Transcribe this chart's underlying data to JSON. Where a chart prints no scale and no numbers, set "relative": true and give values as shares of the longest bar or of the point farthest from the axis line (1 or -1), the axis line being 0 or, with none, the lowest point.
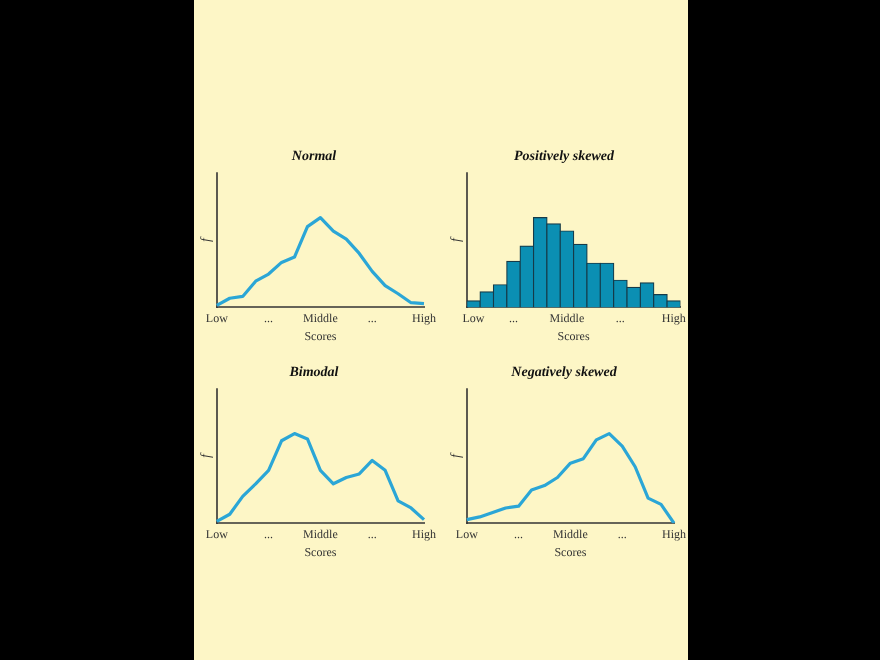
{
  "chart_data": [
    {
      "type": "line",
      "title": "Normal",
      "xlabel": "Scores",
      "ylabel": "f",
      "relative": true,
      "color": "#2ba6d6",
      "categories": [
        "Low",
        null,
        null,
        null,
        "...",
        null,
        null,
        null,
        "Middle",
        null,
        null,
        null,
        "...",
        null,
        null,
        null,
        "High"
      ],
      "values": [
        0.02,
        0.1,
        0.12,
        0.29,
        0.37,
        0.5,
        0.56,
        0.9,
        1,
        0.85,
        0.76,
        0.6,
        0.4,
        0.24,
        0.15,
        0.05,
        0.04
      ]
    },
    {
      "type": "bar",
      "title": "Positively skewed",
      "xlabel": "Scores",
      "ylabel": "f",
      "relative": true,
      "color": "#0b8fb3",
      "categories": [
        "Low",
        null,
        null,
        "...",
        null,
        null,
        null,
        "Middle",
        null,
        null,
        null,
        "...",
        null,
        null,
        null,
        "High"
      ],
      "values": [
        0.07,
        0.17,
        0.25,
        0.51,
        0.68,
        1,
        0.93,
        0.85,
        0.7,
        0.49,
        0.49,
        0.3,
        0.22,
        0.27,
        0.14,
        0.07
      ]
    },
    {
      "type": "line",
      "title": "Bimodal",
      "xlabel": "Scores",
      "ylabel": "f",
      "relative": true,
      "color": "#2ba6d6",
      "categories": [
        "Low",
        null,
        null,
        null,
        "...",
        null,
        null,
        null,
        "Middle",
        null,
        null,
        null,
        "...",
        null,
        null,
        null,
        "High"
      ],
      "values": [
        0.02,
        0.1,
        0.3,
        0.44,
        0.59,
        0.92,
        1,
        0.94,
        0.59,
        0.44,
        0.51,
        0.55,
        0.7,
        0.59,
        0.25,
        0.17,
        0.04
      ]
    },
    {
      "type": "line",
      "title": "Negatively skewed",
      "xlabel": "Scores",
      "ylabel": "f",
      "relative": true,
      "color": "#2ba6d6",
      "categories": [
        "Low",
        null,
        null,
        null,
        "...",
        null,
        null,
        null,
        "Middle",
        null,
        null,
        null,
        "...",
        null,
        null,
        null,
        "High"
      ],
      "values": [
        0.04,
        0.07,
        0.12,
        0.17,
        0.19,
        0.37,
        0.42,
        0.51,
        0.67,
        0.72,
        0.93,
        1,
        0.86,
        0.63,
        0.28,
        0.21,
        0
      ]
    }
  ]
}
